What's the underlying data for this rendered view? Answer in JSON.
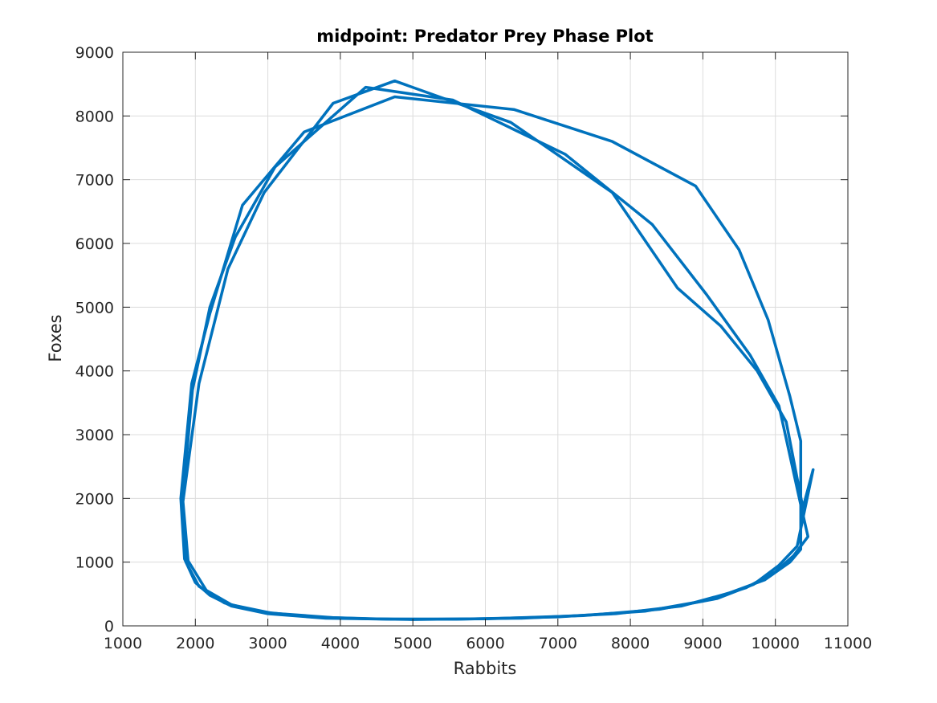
{
  "chart_data": {
    "type": "line",
    "title": "midpoint: Predator Prey Phase Plot",
    "xlabel": "Rabbits",
    "ylabel": "Foxes",
    "xlim": [
      1000,
      11000
    ],
    "ylim": [
      0,
      9000
    ],
    "xticks": [
      1000,
      2000,
      3000,
      4000,
      5000,
      6000,
      7000,
      8000,
      9000,
      10000,
      11000
    ],
    "yticks": [
      0,
      1000,
      2000,
      3000,
      4000,
      5000,
      6000,
      7000,
      8000,
      9000
    ],
    "xtick_labels": [
      "1000",
      "2000",
      "3000",
      "4000",
      "5000",
      "6000",
      "7000",
      "8000",
      "9000",
      "10000",
      "11000"
    ],
    "ytick_labels": [
      "0",
      "1000",
      "2000",
      "3000",
      "4000",
      "5000",
      "6000",
      "7000",
      "8000",
      "9000"
    ],
    "grid": true,
    "box": true,
    "line_color": "#0072BD",
    "series": [
      {
        "x": [
          1800,
          1850,
          2000,
          2200,
          2500,
          3000,
          3800,
          5000,
          6500,
          7800,
          8700,
          9350,
          9850,
          10200,
          10350,
          10350,
          10200,
          9900,
          9500,
          8900,
          7750,
          6400,
          4750,
          3500,
          2650,
          2200,
          1950,
          1800
        ],
        "y": [
          2000,
          1050,
          680,
          480,
          310,
          190,
          120,
          100,
          120,
          190,
          310,
          510,
          720,
          1000,
          1200,
          2900,
          3600,
          4800,
          5900,
          6900,
          7600,
          8100,
          8300,
          7750,
          6600,
          4900,
          3800,
          2000
        ]
      },
      {
        "x": [
          1820,
          1870,
          2050,
          2400,
          2900,
          3600,
          4400,
          5600,
          7000,
          8200,
          9000,
          9600,
          10000,
          10250,
          10450,
          10350,
          10050,
          9650,
          9050,
          8300,
          7100,
          5550,
          4350,
          3100,
          2550,
          2200,
          1960,
          1820
        ],
        "y": [
          1900,
          1000,
          620,
          360,
          220,
          140,
          110,
          105,
          140,
          230,
          390,
          600,
          850,
          1100,
          1400,
          1900,
          3450,
          4250,
          5200,
          6300,
          7400,
          8250,
          8450,
          7200,
          6100,
          5000,
          3700,
          1900
        ]
      },
      {
        "x": [
          1830,
          1900,
          2150,
          2500,
          3050,
          3900,
          4700,
          6000,
          7350,
          8400,
          9200,
          9700,
          10050,
          10300,
          10520,
          10380,
          10150,
          9750,
          9250,
          8650,
          7750,
          6350,
          4750,
          3900,
          2950,
          2450,
          2050,
          1830
        ],
        "y": [
          1950,
          1020,
          560,
          330,
          200,
          130,
          105,
          110,
          160,
          260,
          430,
          650,
          950,
          1250,
          2450,
          1850,
          3200,
          4000,
          4700,
          5300,
          6800,
          7900,
          8550,
          8200,
          6800,
          5600,
          3800,
          1950
        ]
      }
    ]
  }
}
